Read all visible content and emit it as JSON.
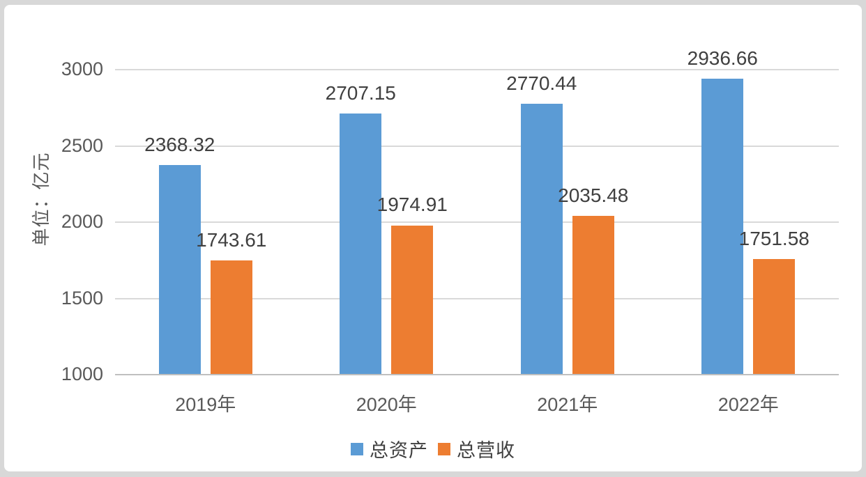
{
  "chart_data": {
    "type": "bar",
    "title": "",
    "ylabel": "单位：亿元",
    "xlabel": "",
    "categories": [
      "2019年",
      "2020年",
      "2021年",
      "2022年"
    ],
    "series": [
      {
        "name": "总资产",
        "key": "total-assets",
        "color": "#5B9BD5",
        "values": [
          2368.32,
          2707.15,
          2770.44,
          2936.66
        ]
      },
      {
        "name": "总营收",
        "key": "total-revenue",
        "color": "#ED7D31",
        "values": [
          1743.61,
          1974.91,
          2035.48,
          1751.58
        ]
      }
    ],
    "ylim": [
      1000,
      3000
    ],
    "y_ticks": [
      1000,
      1500,
      2000,
      2500,
      3000
    ],
    "grid": true,
    "data_labels": true,
    "legend_position": "bottom"
  },
  "colors": {
    "frame": "#d8d8d8",
    "card_background": "#ffffff",
    "gridline": "#d9d9d9",
    "baseline": "#bfbfbf",
    "axis_text": "#595959",
    "data_label_text": "#404040"
  }
}
